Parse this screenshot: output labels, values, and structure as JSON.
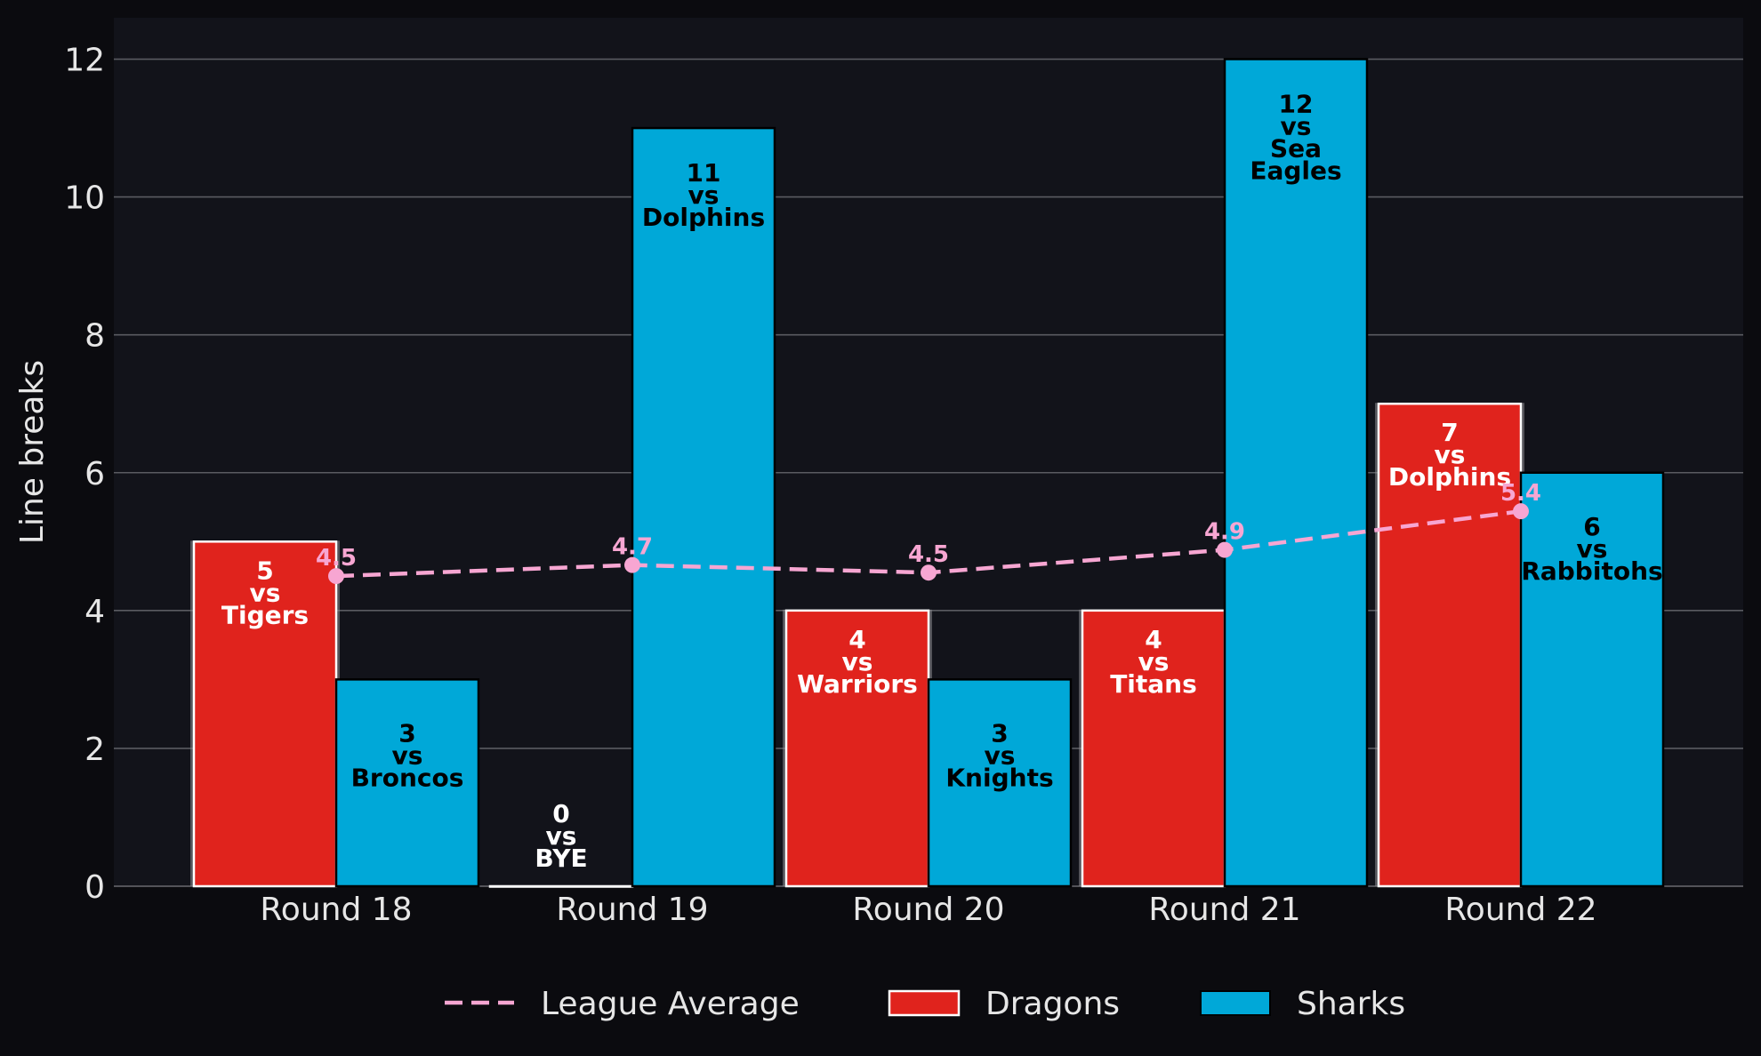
{
  "chart_data": {
    "type": "bar",
    "title": "",
    "xlabel": "",
    "ylabel": "Line breaks",
    "ylim": [
      0,
      12.6
    ],
    "yticks": [
      0,
      2,
      4,
      6,
      8,
      10,
      12
    ],
    "grid": true,
    "legend_position": "bottom-center",
    "categories": [
      "Round 18",
      "Round 19",
      "Round 20",
      "Round 21",
      "Round 22"
    ],
    "series": [
      {
        "name": "Dragons",
        "color": "#e0231d",
        "values": [
          5,
          0,
          4,
          4,
          7
        ],
        "labels": [
          [
            "5",
            "vs",
            "Tigers"
          ],
          [
            "0",
            "vs",
            "BYE"
          ],
          [
            "4",
            "vs",
            "Warriors"
          ],
          [
            "4",
            "vs",
            "Titans"
          ],
          [
            "7",
            "vs",
            "Dolphins"
          ]
        ]
      },
      {
        "name": "Sharks",
        "color": "#00a8d8",
        "values": [
          3,
          11,
          3,
          12,
          6
        ],
        "labels": [
          [
            "3",
            "vs",
            "Broncos"
          ],
          [
            "11",
            "vs",
            "Dolphins"
          ],
          [
            "3",
            "vs",
            "Knights"
          ],
          [
            "12",
            "vs",
            "Sea",
            "Eagles"
          ],
          [
            "6",
            "vs",
            "Rabbitohs"
          ]
        ]
      }
    ],
    "average": {
      "name": "League Average",
      "color": "#f7a6d2",
      "values": [
        4.5,
        4.66,
        4.55,
        4.88,
        5.44
      ],
      "labels": [
        "4.5",
        "4.7",
        "4.5",
        "4.9",
        "5.4"
      ]
    },
    "colors": {
      "background": "#0b0b0f",
      "plot_background": "#12131a",
      "grid": "#5a5b61",
      "text": "#e6e6e6"
    }
  }
}
